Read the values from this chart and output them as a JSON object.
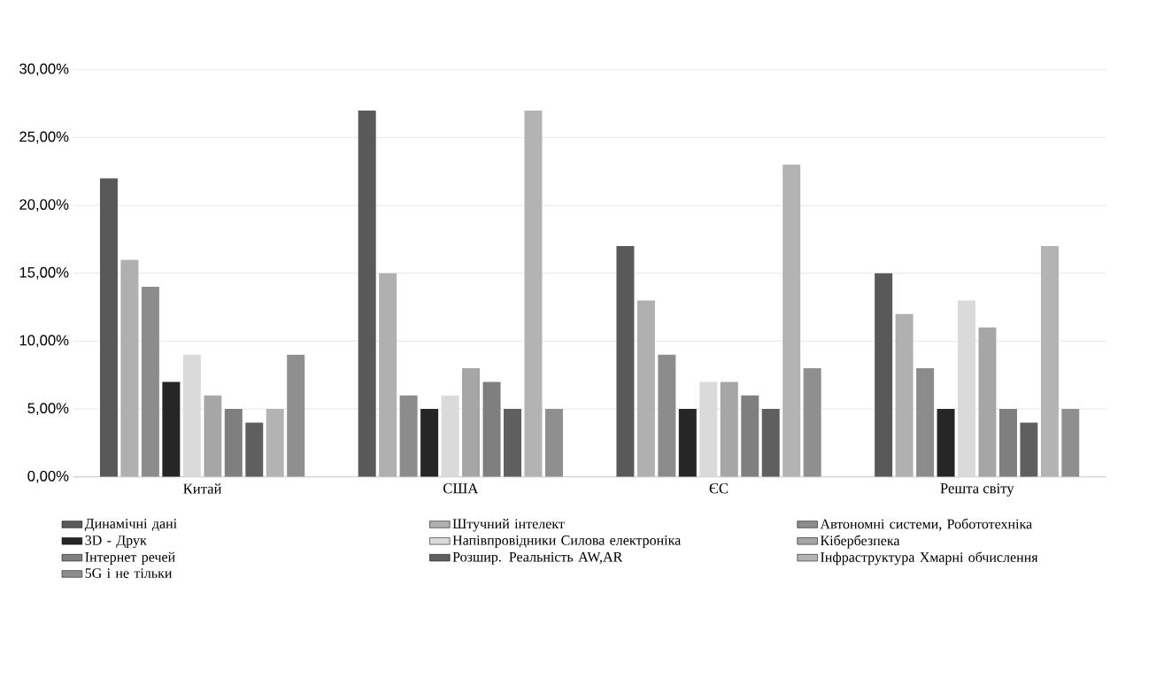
{
  "chart_data": {
    "type": "bar",
    "categories": [
      "Китай",
      "США",
      "ЄС",
      "Решта світу"
    ],
    "series": [
      {
        "name": "Динамічні дані",
        "color": "#595959",
        "values": [
          22,
          27,
          17,
          15
        ]
      },
      {
        "name": "Штучний інтелект",
        "color": "#b0b0b0",
        "values": [
          16,
          15,
          13,
          12
        ]
      },
      {
        "name": "Автономні системи, Робототехніка",
        "color": "#8c8c8c",
        "values": [
          14,
          6,
          9,
          8
        ]
      },
      {
        "name": "3D - Друк",
        "color": "#262626",
        "values": [
          7,
          5,
          5,
          5
        ]
      },
      {
        "name": "Напівпровідники Силова електроніка",
        "color": "#dadada",
        "values": [
          9,
          6,
          7,
          13
        ]
      },
      {
        "name": "Кібербезпека",
        "color": "#a6a6a6",
        "values": [
          6,
          8,
          7,
          11
        ]
      },
      {
        "name": "Інтернет речей",
        "color": "#7f7f7f",
        "values": [
          5,
          7,
          6,
          5
        ]
      },
      {
        "name": "Розшир. Реальність AW,AR",
        "color": "#5f5f5f",
        "values": [
          4,
          5,
          5,
          4
        ]
      },
      {
        "name": "Інфраструктура Хмарні обчислення",
        "color": "#b3b3b3",
        "values": [
          5,
          27,
          23,
          17
        ]
      },
      {
        "name": "5G і не тільки",
        "color": "#8f8f8f",
        "values": [
          9,
          5,
          8,
          5
        ]
      }
    ],
    "ylim": [
      0,
      30
    ],
    "yticks": [
      {
        "value": 0,
        "label": "0,00%"
      },
      {
        "value": 5,
        "label": "5,00%"
      },
      {
        "value": 10,
        "label": "10,00%"
      },
      {
        "value": 15,
        "label": "15,00%"
      },
      {
        "value": 20,
        "label": "20,00%"
      },
      {
        "value": 25,
        "label": "25,00%"
      },
      {
        "value": 30,
        "label": "30,00%"
      }
    ],
    "grid": "y",
    "legend": "bottom"
  }
}
